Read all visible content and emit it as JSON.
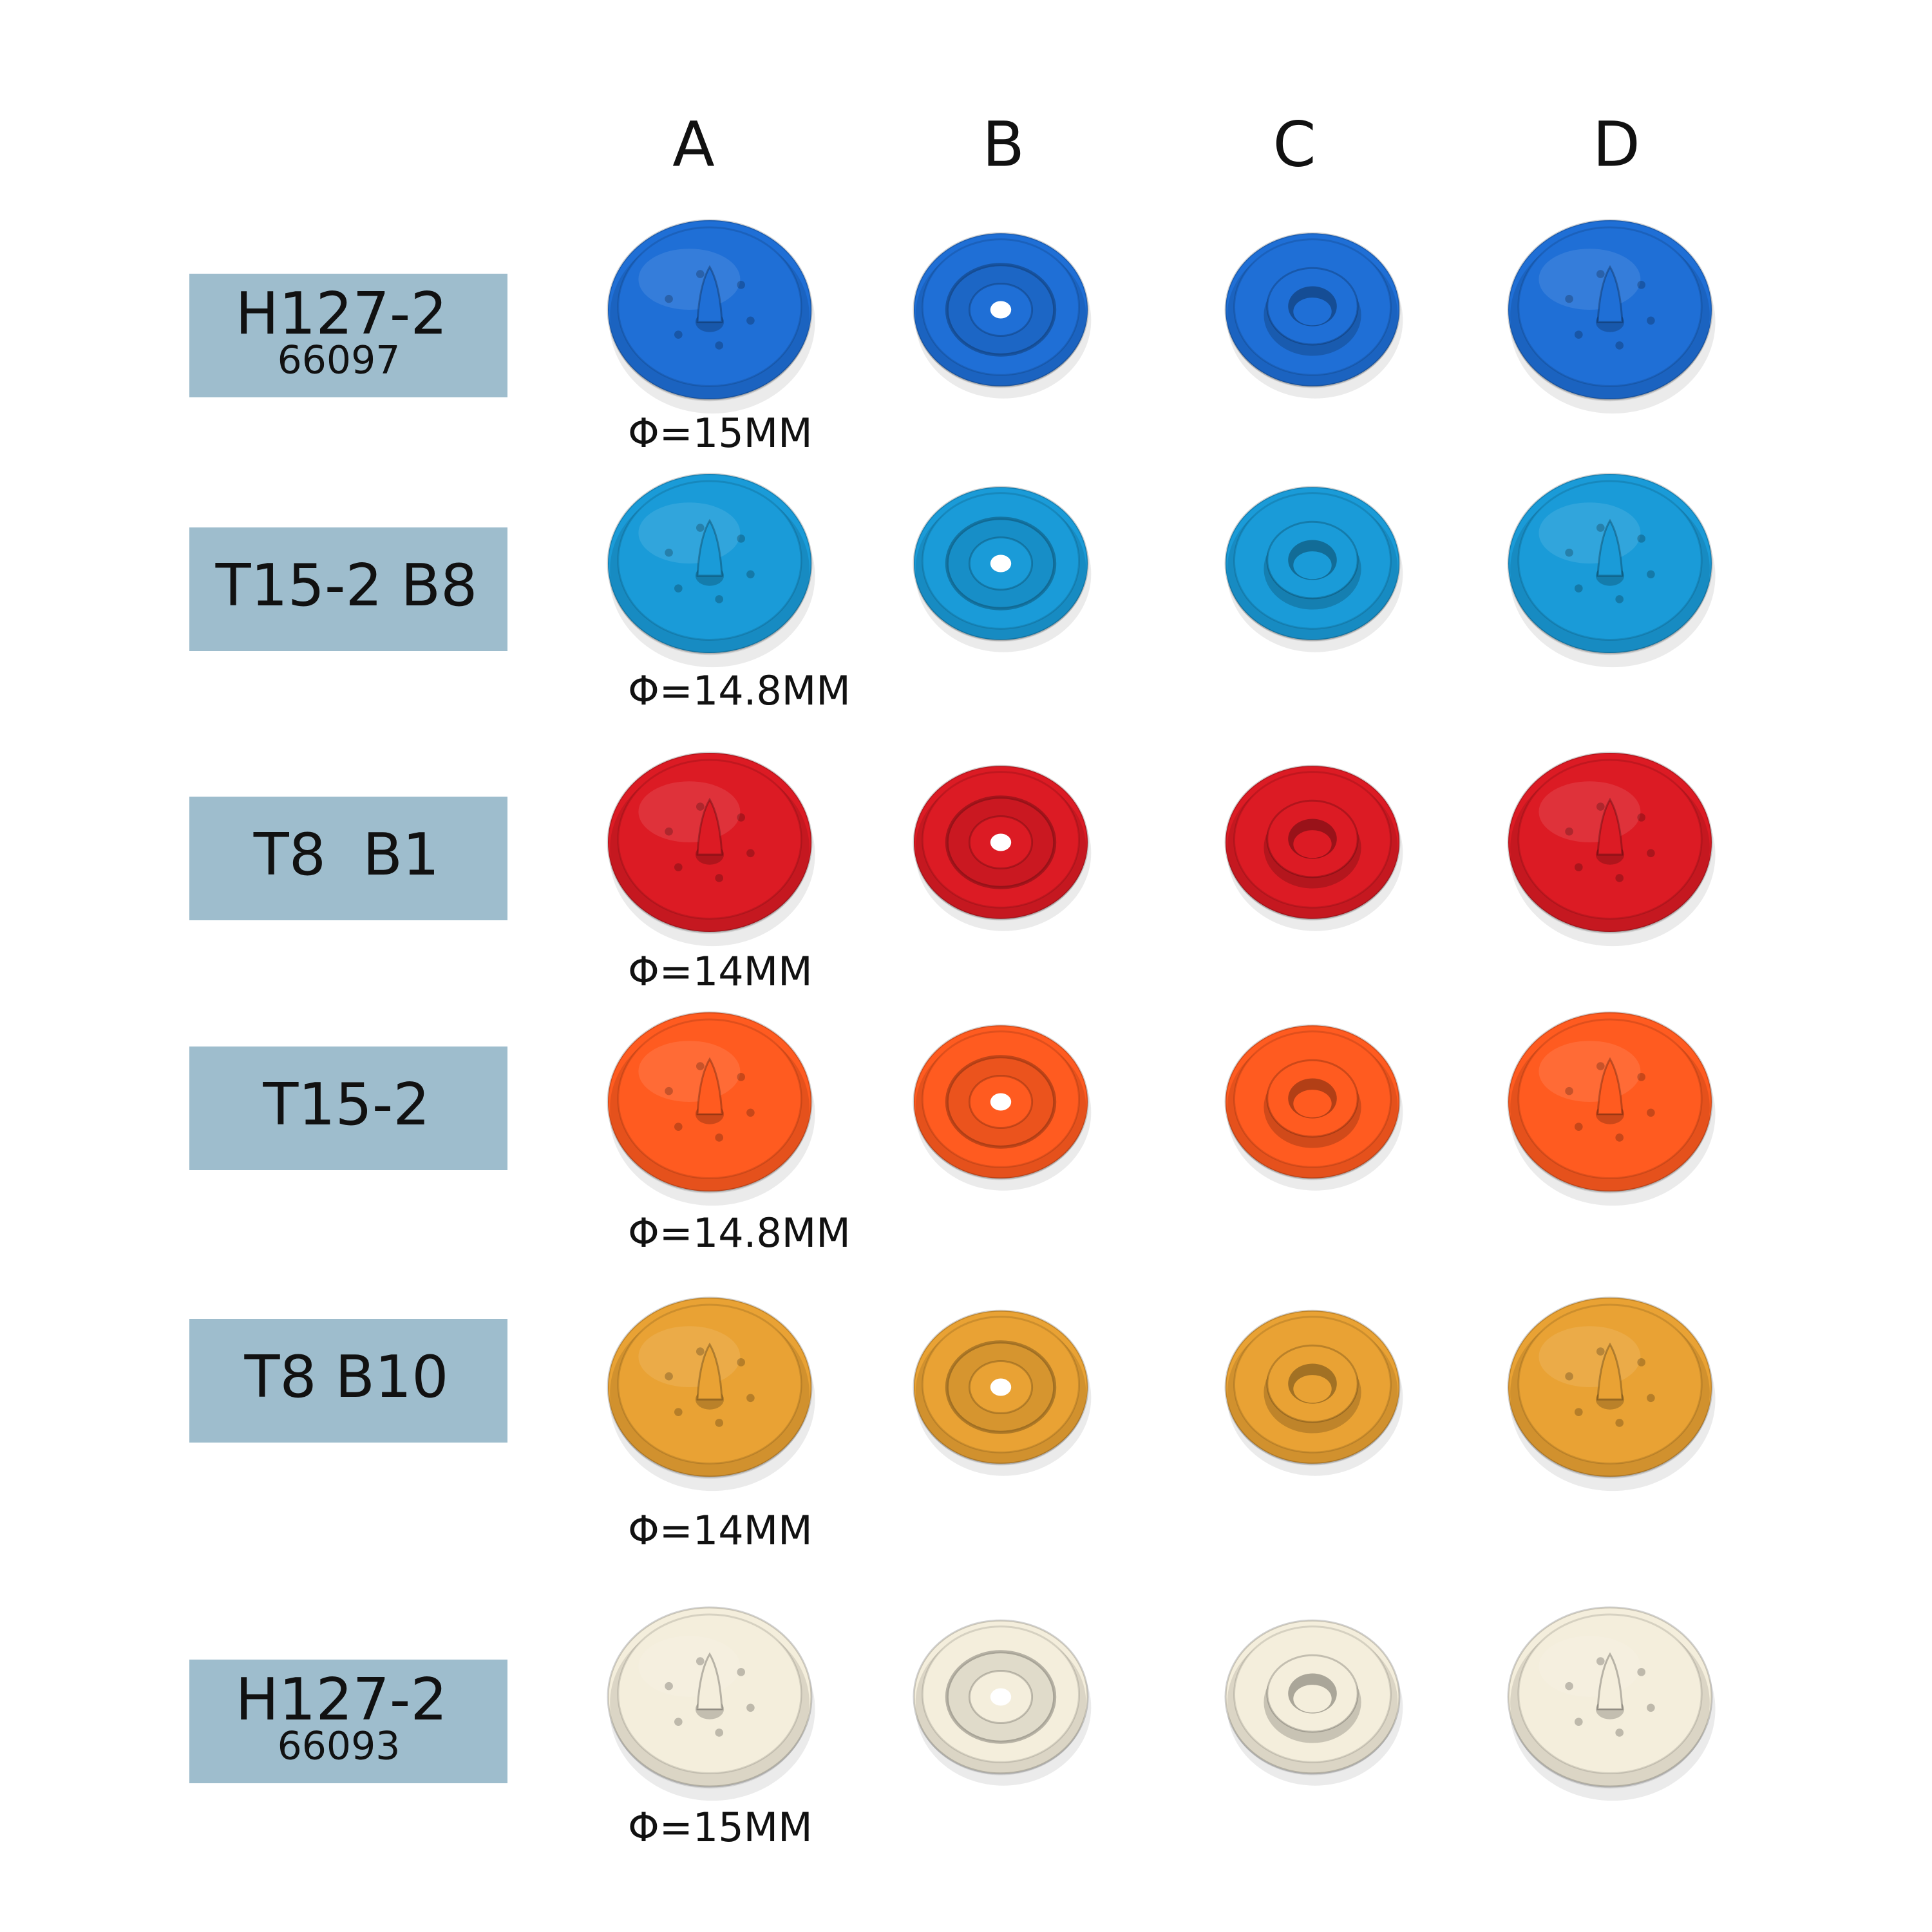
{
  "columns": [
    "A",
    "B",
    "C",
    "D"
  ],
  "rows": [
    {
      "label": "H127-2",
      "sub_label": "66097",
      "diameter": "Φ=15MM",
      "color": "#1f6fd6"
    },
    {
      "label": "T15-2 B8",
      "diameter": "Φ=14.8MM",
      "color": "#1a9bd8"
    },
    {
      "label": "T8  B1",
      "diameter": "Φ=14MM",
      "color": "#dc1b24"
    },
    {
      "label": "T15-2",
      "diameter": "Φ=14.8MM",
      "color": "#ff5b20"
    },
    {
      "label": "T8 B10",
      "diameter": "Φ=14MM",
      "color": "#e9a234"
    },
    {
      "label": "H127-2",
      "sub_label": "66093",
      "diameter": "Φ=15MM",
      "color": "#f4eedc"
    }
  ]
}
